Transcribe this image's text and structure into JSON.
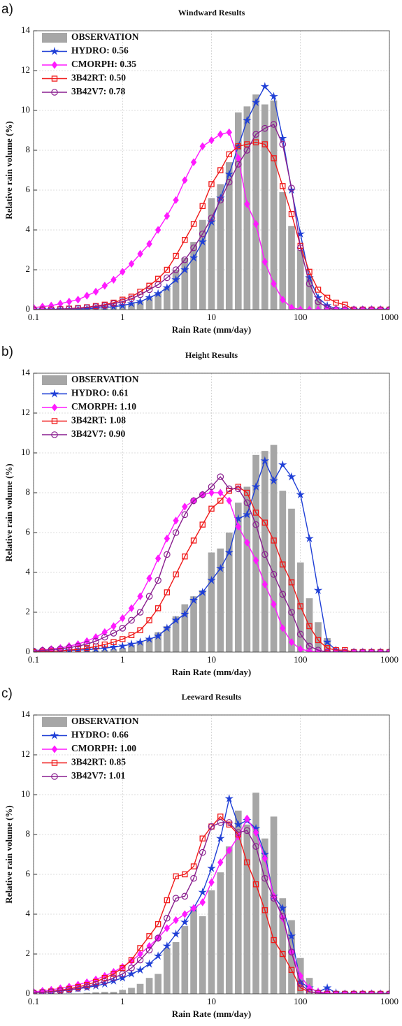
{
  "chart_data": [
    {
      "type": "bar+line",
      "panel_label": "a)",
      "title": "Windward Results",
      "xlabel": "Rain Rate (mm/day)",
      "ylabel": "Relative rain volume (%)",
      "xscale": "log",
      "xlim": [
        0.1,
        1000
      ],
      "xticks": [
        0.1,
        1,
        10,
        100,
        1000
      ],
      "ylim": [
        0,
        14
      ],
      "yticks": [
        0,
        2,
        4,
        6,
        8,
        10,
        12,
        14
      ],
      "grid": true,
      "legend": "upper left",
      "x": [
        0.1,
        0.126,
        0.158,
        0.2,
        0.251,
        0.316,
        0.398,
        0.501,
        0.631,
        0.794,
        1,
        1.26,
        1.58,
        2,
        2.51,
        3.16,
        3.98,
        5.01,
        6.31,
        7.94,
        10,
        12.6,
        15.8,
        20,
        25.1,
        31.6,
        39.8,
        50.1,
        63.1,
        79.4,
        100,
        126,
        158,
        200,
        251,
        316,
        398,
        501,
        631,
        794,
        1000
      ],
      "series": [
        {
          "name": "OBSERVATION",
          "type": "bar",
          "color": "#a6a6a6",
          "values": [
            0,
            0,
            0,
            0,
            0,
            0,
            0,
            0.05,
            0.1,
            0.15,
            0.2,
            0.3,
            0.4,
            0.6,
            0.8,
            1.1,
            2.0,
            2.6,
            3.4,
            4.5,
            5.6,
            6.3,
            7.4,
            9.9,
            10.2,
            10.8,
            10.3,
            10.5,
            5.9,
            4.2,
            3.0,
            1.7,
            0.5,
            0.1,
            0,
            0,
            0,
            0,
            0,
            0,
            0
          ]
        },
        {
          "name": "HYDRO: 0.56",
          "type": "line",
          "marker": "star",
          "color": "#1f3fd6",
          "values": [
            0,
            0,
            0,
            0,
            0,
            0.02,
            0.04,
            0.07,
            0.1,
            0.15,
            0.2,
            0.3,
            0.4,
            0.6,
            0.8,
            1.1,
            1.5,
            2.0,
            2.6,
            3.4,
            4.4,
            5.6,
            6.8,
            8.2,
            9.5,
            10.4,
            11.2,
            10.7,
            8.6,
            6.0,
            3.8,
            1.6,
            0.6,
            0.2,
            0.05,
            0,
            0,
            0,
            0,
            0,
            0
          ]
        },
        {
          "name": "CMORPH: 0.35",
          "type": "line",
          "marker": "diamond",
          "color": "#ff1aff",
          "values": [
            0.1,
            0.15,
            0.2,
            0.3,
            0.4,
            0.5,
            0.7,
            0.9,
            1.2,
            1.5,
            1.9,
            2.3,
            2.8,
            3.3,
            4.0,
            4.7,
            5.5,
            6.5,
            7.4,
            8.2,
            8.5,
            8.8,
            8.9,
            7.6,
            5.3,
            4.3,
            2.4,
            1.3,
            0.5,
            0.1,
            0,
            0,
            0,
            0,
            0,
            0,
            0,
            0,
            0,
            0,
            0
          ]
        },
        {
          "name": "3B42RT: 0.50",
          "type": "line",
          "marker": "square",
          "color": "#f01a1a",
          "values": [
            0,
            0,
            0,
            0.02,
            0.05,
            0.08,
            0.12,
            0.18,
            0.25,
            0.35,
            0.5,
            0.65,
            0.9,
            1.2,
            1.55,
            2.0,
            2.7,
            3.5,
            4.3,
            5.2,
            6.3,
            7.0,
            7.8,
            8.2,
            8.3,
            8.4,
            8.3,
            7.6,
            6.2,
            4.8,
            3.2,
            1.9,
            1.0,
            0.6,
            0.35,
            0.25,
            0,
            0,
            0,
            0,
            0
          ]
        },
        {
          "name": "3B42V7: 0.78",
          "type": "line",
          "marker": "circle",
          "color": "#8a1f8f",
          "values": [
            0,
            0,
            0,
            0.02,
            0.04,
            0.06,
            0.1,
            0.15,
            0.2,
            0.3,
            0.4,
            0.55,
            0.75,
            1.0,
            1.25,
            1.6,
            2.0,
            2.5,
            3.1,
            3.8,
            4.6,
            5.5,
            6.4,
            7.3,
            8.0,
            8.8,
            9.1,
            9.3,
            8.3,
            6.1,
            3.1,
            1.3,
            0.4,
            0.1,
            0,
            0,
            0,
            0,
            0,
            0,
            0
          ]
        }
      ]
    },
    {
      "type": "bar+line",
      "panel_label": "b)",
      "title": "Height Results",
      "xlabel": "Rain Rate (mm/day)",
      "ylabel": "Relative rain volume (%)",
      "xscale": "log",
      "xlim": [
        0.1,
        1000
      ],
      "xticks": [
        0.1,
        1,
        10,
        100,
        1000
      ],
      "ylim": [
        0,
        14
      ],
      "yticks": [
        0,
        2,
        4,
        6,
        8,
        10,
        12,
        14
      ],
      "grid": true,
      "legend": "upper left",
      "x": [
        0.1,
        0.126,
        0.158,
        0.2,
        0.251,
        0.316,
        0.398,
        0.501,
        0.631,
        0.794,
        1,
        1.26,
        1.58,
        2,
        2.51,
        3.16,
        3.98,
        5.01,
        6.31,
        7.94,
        10,
        12.6,
        15.8,
        20,
        25.1,
        31.6,
        39.8,
        50.1,
        63.1,
        79.4,
        100,
        126,
        158,
        200,
        251,
        316,
        398,
        501,
        631,
        794,
        1000
      ],
      "series": [
        {
          "name": "OBSERVATION",
          "type": "bar",
          "color": "#a6a6a6",
          "values": [
            0,
            0,
            0,
            0,
            0,
            0,
            0.05,
            0.08,
            0.1,
            0.15,
            0.2,
            0.35,
            0.5,
            0.7,
            1.0,
            1.3,
            1.8,
            2.4,
            2.8,
            3.1,
            5.0,
            5.2,
            6.0,
            7.5,
            8.3,
            9.9,
            10.1,
            10.4,
            8.1,
            7.2,
            4.5,
            2.7,
            1.5,
            0.7,
            0.1,
            0,
            0,
            0,
            0,
            0,
            0
          ]
        },
        {
          "name": "HYDRO: 0.61",
          "type": "line",
          "marker": "star",
          "color": "#1f3fd6",
          "values": [
            0.05,
            0.05,
            0.05,
            0.05,
            0.07,
            0.1,
            0.12,
            0.15,
            0.2,
            0.25,
            0.3,
            0.4,
            0.5,
            0.65,
            0.8,
            1.2,
            1.6,
            1.9,
            2.6,
            3.0,
            3.6,
            4.2,
            5.0,
            6.7,
            6.9,
            8.3,
            9.6,
            8.6,
            9.4,
            8.8,
            7.9,
            5.7,
            3.1,
            0.5,
            0.1,
            0,
            0,
            0,
            0,
            0,
            0
          ]
        },
        {
          "name": "CMORPH: 1.10",
          "type": "line",
          "marker": "diamond",
          "color": "#ff1aff",
          "values": [
            0.05,
            0.1,
            0.15,
            0.2,
            0.3,
            0.4,
            0.55,
            0.75,
            1.0,
            1.3,
            1.7,
            2.2,
            2.8,
            3.7,
            4.7,
            5.7,
            6.6,
            7.3,
            7.6,
            7.9,
            8.0,
            8.0,
            7.6,
            6.3,
            5.5,
            4.6,
            3.4,
            2.4,
            1.2,
            0.5,
            0.15,
            0.05,
            0,
            0,
            0,
            0,
            0,
            0,
            0,
            0,
            0
          ]
        },
        {
          "name": "3B42RT: 1.08",
          "type": "line",
          "marker": "square",
          "color": "#f01a1a",
          "values": [
            0,
            0.02,
            0.04,
            0.06,
            0.1,
            0.14,
            0.2,
            0.28,
            0.38,
            0.5,
            0.65,
            0.85,
            1.1,
            1.6,
            2.2,
            3.0,
            3.9,
            4.8,
            5.6,
            6.4,
            7.2,
            7.6,
            8.1,
            8.3,
            8.0,
            7.0,
            6.5,
            5.6,
            4.4,
            3.5,
            2.3,
            1.3,
            0.6,
            0.2,
            0.1,
            0.1,
            0,
            0,
            0,
            0,
            0
          ]
        },
        {
          "name": "3B42V7: 0.90",
          "type": "line",
          "marker": "circle",
          "color": "#8a1f8f",
          "values": [
            0.05,
            0.08,
            0.12,
            0.16,
            0.22,
            0.3,
            0.4,
            0.55,
            0.75,
            0.95,
            1.2,
            1.6,
            2.0,
            2.8,
            3.6,
            4.9,
            6.0,
            6.9,
            7.6,
            7.9,
            8.3,
            8.8,
            8.2,
            8.2,
            7.5,
            6.4,
            4.9,
            3.9,
            2.9,
            2.0,
            0.9,
            0.3,
            0.1,
            0,
            0,
            0,
            0,
            0,
            0,
            0,
            0
          ]
        }
      ]
    },
    {
      "type": "bar+line",
      "panel_label": "c)",
      "title": "Leeward Results",
      "xlabel": "Rain Rate (mm/day)",
      "ylabel": "Relative rain volume (%)",
      "xscale": "log",
      "xlim": [
        0.1,
        1000
      ],
      "xticks": [
        0.1,
        1,
        10,
        100,
        1000
      ],
      "ylim": [
        0,
        14
      ],
      "yticks": [
        0,
        2,
        4,
        6,
        8,
        10,
        12,
        14
      ],
      "grid": true,
      "legend": "upper left",
      "x": [
        0.1,
        0.126,
        0.158,
        0.2,
        0.251,
        0.316,
        0.398,
        0.501,
        0.631,
        0.794,
        1,
        1.26,
        1.58,
        2,
        2.51,
        3.16,
        3.98,
        5.01,
        6.31,
        7.94,
        10,
        12.6,
        15.8,
        20,
        25.1,
        31.6,
        39.8,
        50.1,
        63.1,
        79.4,
        100,
        126,
        158,
        200,
        251,
        316,
        398,
        501,
        631,
        794,
        1000
      ],
      "series": [
        {
          "name": "OBSERVATION",
          "type": "bar",
          "color": "#a6a6a6",
          "values": [
            0,
            0,
            0,
            0,
            0,
            0,
            0.05,
            0.08,
            0.1,
            0.1,
            0.2,
            0.3,
            0.5,
            0.8,
            1.0,
            2.3,
            2.6,
            3.4,
            4.3,
            3.9,
            5.2,
            6.1,
            7.4,
            9.2,
            8.5,
            10.1,
            7.8,
            8.9,
            4.8,
            3.7,
            1.8,
            0.8,
            0.1,
            0,
            0,
            0,
            0,
            0,
            0,
            0,
            0
          ]
        },
        {
          "name": "HYDRO: 0.66",
          "type": "line",
          "marker": "star",
          "color": "#1f3fd6",
          "values": [
            0.05,
            0.07,
            0.1,
            0.14,
            0.2,
            0.26,
            0.32,
            0.4,
            0.5,
            0.65,
            0.8,
            1.0,
            1.2,
            1.5,
            1.9,
            2.4,
            3.0,
            3.6,
            4.3,
            5.1,
            6.3,
            7.8,
            9.8,
            8.5,
            8.7,
            8.3,
            7.0,
            4.9,
            4.3,
            2.9,
            0.6,
            0.3,
            0.1,
            0.3,
            0.05,
            0,
            0,
            0,
            0,
            0,
            0
          ]
        },
        {
          "name": "CMORPH: 1.00",
          "type": "line",
          "marker": "diamond",
          "color": "#ff1aff",
          "values": [
            0.1,
            0.15,
            0.2,
            0.28,
            0.36,
            0.46,
            0.58,
            0.72,
            0.9,
            1.1,
            1.35,
            1.65,
            2.0,
            2.4,
            2.8,
            3.3,
            3.7,
            4.0,
            4.3,
            4.6,
            5.6,
            6.6,
            7.2,
            7.9,
            8.8,
            8.1,
            6.8,
            4.9,
            3.8,
            2.1,
            0.9,
            0.3,
            0.1,
            0.05,
            0,
            0,
            0,
            0,
            0,
            0,
            0
          ]
        },
        {
          "name": "3B42RT: 0.85",
          "type": "line",
          "marker": "square",
          "color": "#f01a1a",
          "values": [
            0.05,
            0.08,
            0.12,
            0.18,
            0.25,
            0.35,
            0.45,
            0.6,
            0.8,
            1.0,
            1.3,
            1.7,
            2.3,
            2.9,
            3.5,
            4.7,
            5.9,
            6.0,
            6.4,
            7.8,
            8.4,
            8.9,
            8.5,
            8.0,
            6.6,
            5.5,
            4.2,
            2.7,
            2.0,
            1.2,
            0.3,
            0.1,
            0.05,
            0,
            0,
            0,
            0,
            0,
            0,
            0,
            0
          ]
        },
        {
          "name": "3B42V7: 1.01",
          "type": "line",
          "marker": "circle",
          "color": "#8a1f8f",
          "values": [
            0.05,
            0.07,
            0.1,
            0.15,
            0.2,
            0.28,
            0.36,
            0.48,
            0.62,
            0.8,
            1.0,
            1.3,
            1.7,
            2.2,
            2.8,
            3.8,
            4.8,
            4.9,
            5.8,
            7.1,
            8.4,
            8.6,
            8.6,
            8.1,
            8.2,
            7.4,
            5.8,
            4.8,
            3.9,
            2.1,
            0.5,
            0.1,
            0.05,
            0,
            0,
            0,
            0,
            0,
            0,
            0,
            0
          ]
        }
      ]
    }
  ]
}
